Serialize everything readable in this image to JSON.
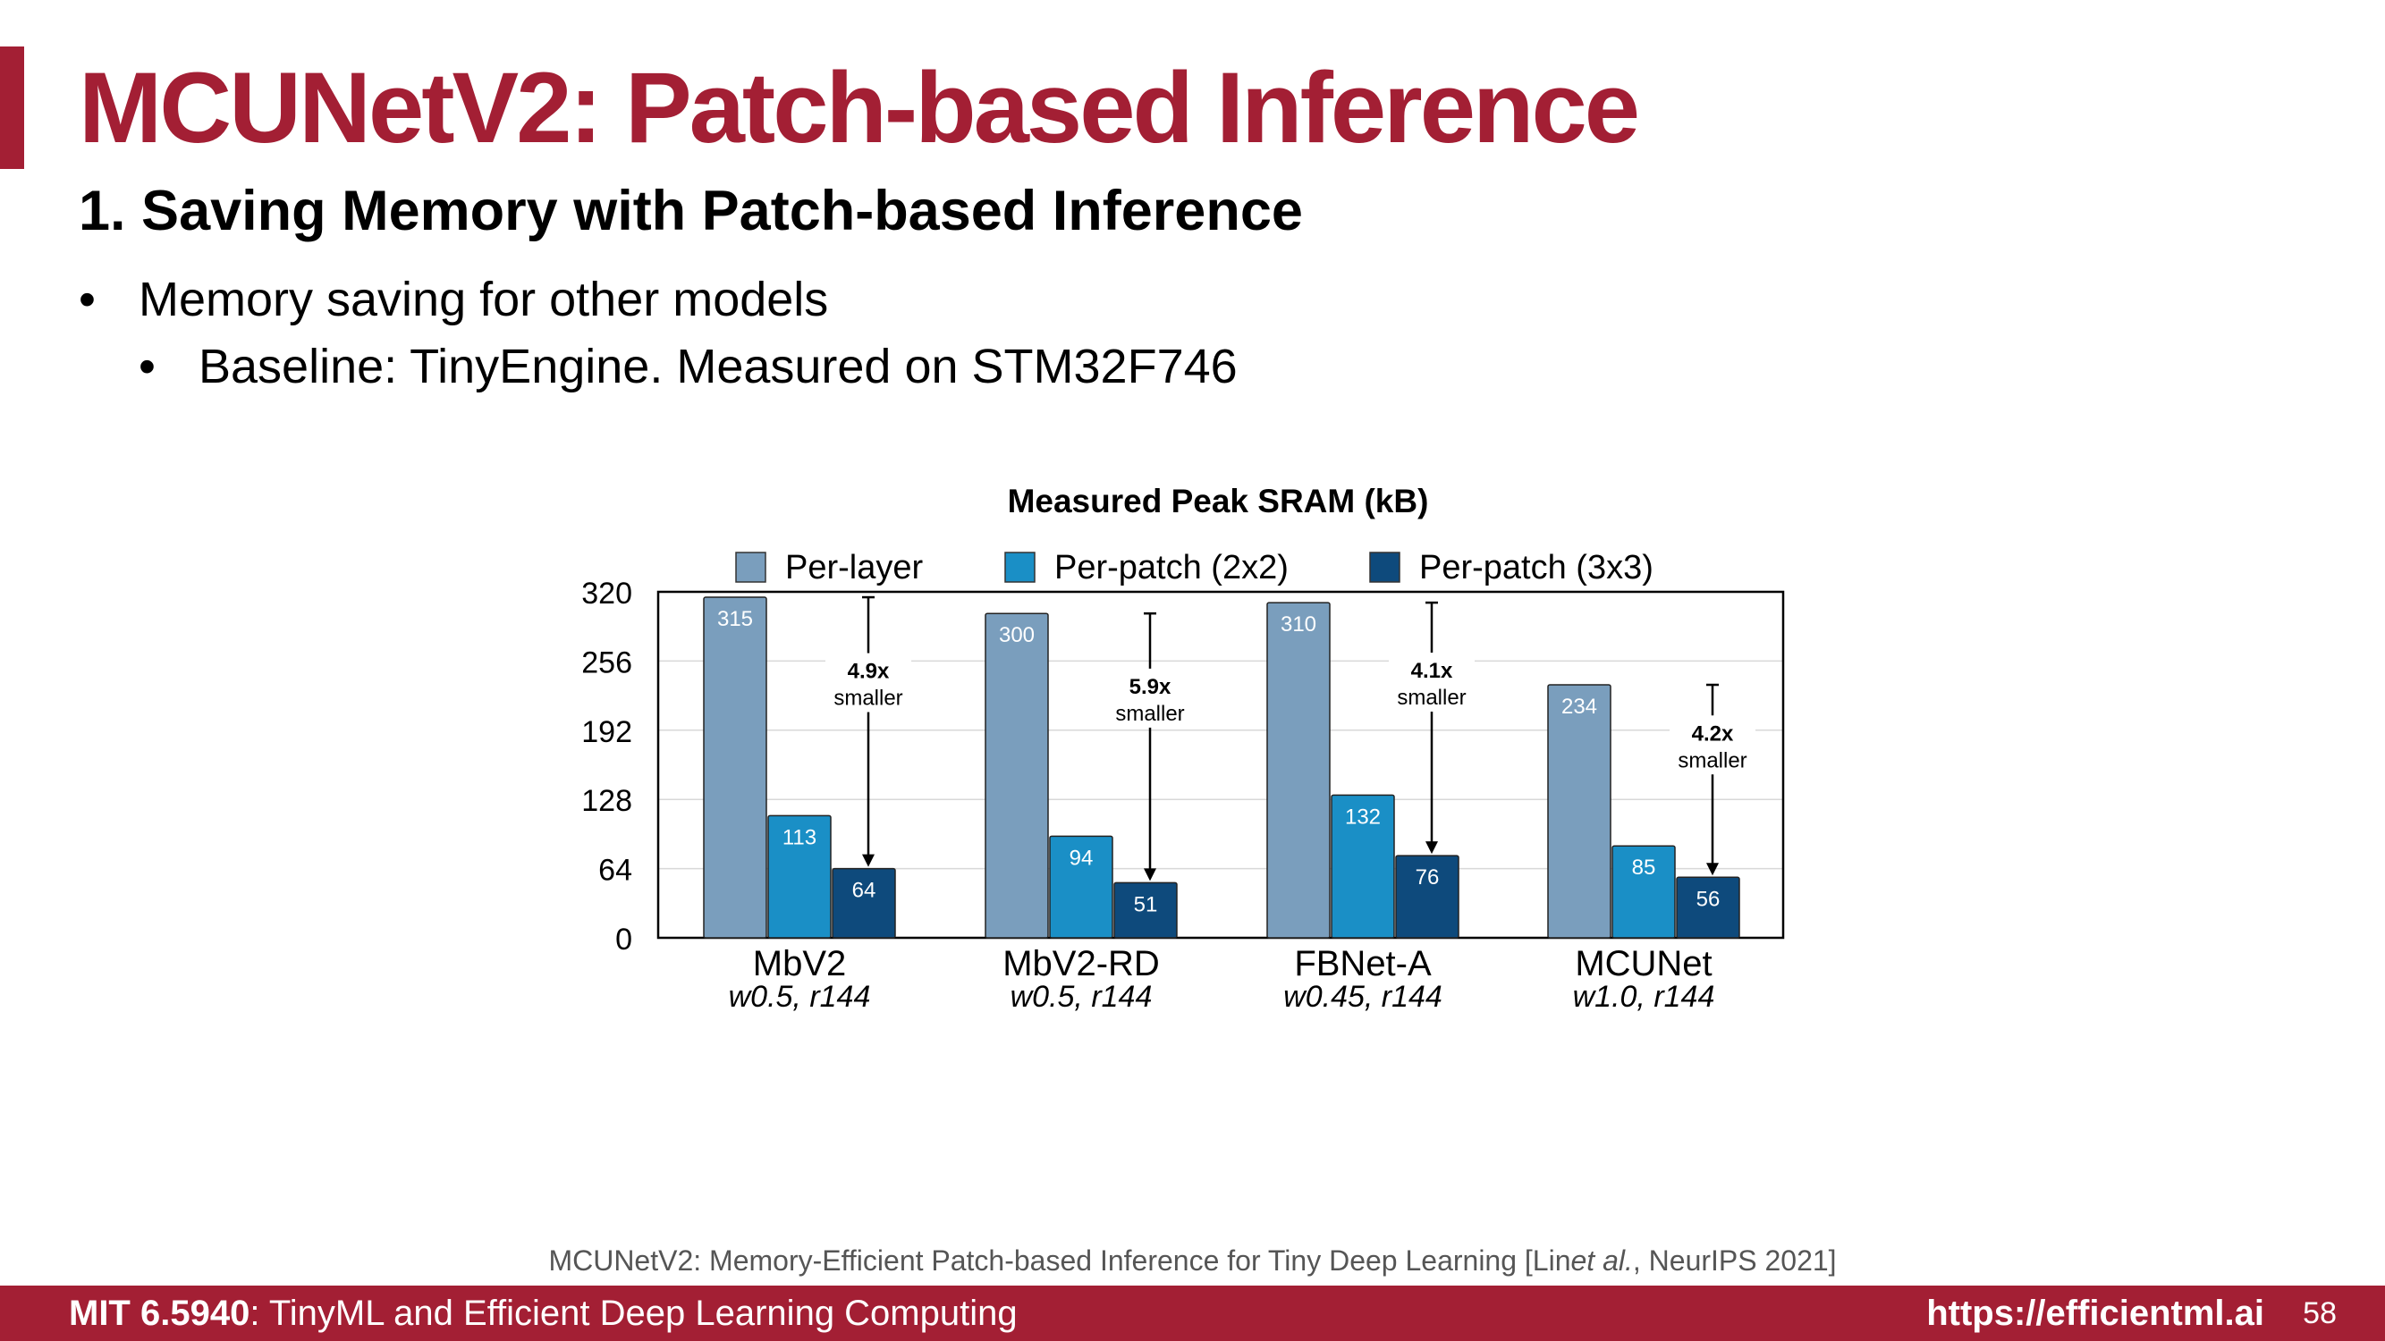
{
  "slide": {
    "title": "MCUNetV2: Patch-based Inference",
    "subtitle": "1. Saving Memory with Patch-based Inference",
    "bullets": [
      {
        "marker": "•",
        "text": "Memory saving for other models"
      },
      {
        "marker": "•",
        "text": "Baseline: TinyEngine. Measured on STM32F746"
      }
    ],
    "citation": {
      "before": "MCUNetV2: Memory-Efficient Patch-based Inference for Tiny Deep Learning [Lin ",
      "italic": "et al.",
      "after": ", NeurIPS 2021]"
    },
    "footer": {
      "course_code": "MIT 6.5940",
      "course_name": ": TinyML and Efficient Deep Learning Computing",
      "url": "https://efficientml.ai",
      "page": "58"
    }
  },
  "colors": {
    "accent": "#a31f34",
    "per_layer": "#7a9ebd",
    "per_patch_2x2": "#1a8fc6",
    "per_patch_3x3": "#0e4a7c"
  },
  "chart_data": {
    "type": "bar",
    "title": "Measured Peak SRAM (kB)",
    "categories": [
      "MbV2",
      "MbV2-RD",
      "FBNet-A",
      "MCUNet"
    ],
    "category_sublabels": [
      "w0.5, r144",
      "w0.5, r144",
      "w0.45, r144",
      "w1.0, r144"
    ],
    "series": [
      {
        "name": "Per-layer",
        "values": [
          315,
          300,
          310,
          234
        ]
      },
      {
        "name": "Per-patch (2x2)",
        "values": [
          113,
          94,
          132,
          85
        ]
      },
      {
        "name": "Per-patch (3x3)",
        "values": [
          64,
          51,
          76,
          56
        ]
      }
    ],
    "annotations": [
      {
        "bold": "4.9x",
        "text": "smaller"
      },
      {
        "bold": "5.9x",
        "text": "smaller"
      },
      {
        "bold": "4.1x",
        "text": "smaller"
      },
      {
        "bold": "4.2x",
        "text": "smaller"
      }
    ],
    "ylim": [
      0,
      320
    ],
    "yticks": [
      0,
      64,
      128,
      192,
      256,
      320
    ],
    "xlabel": "",
    "ylabel": "",
    "grid": true,
    "legend_position": "top"
  }
}
